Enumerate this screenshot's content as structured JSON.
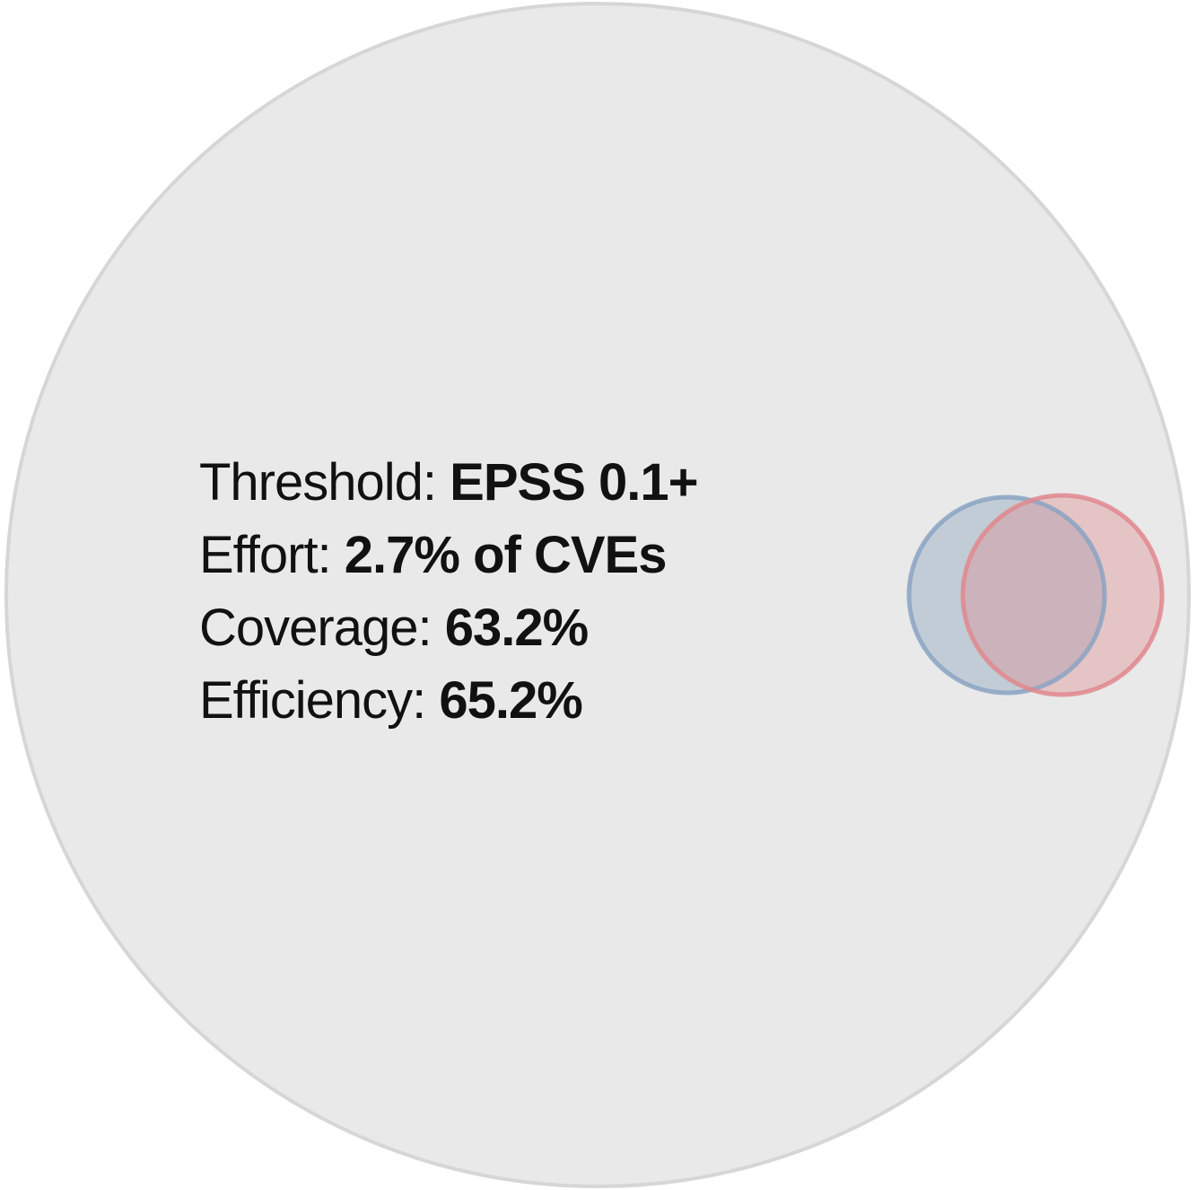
{
  "colors": {
    "population_fill": "#e9e9e9",
    "population_stroke": "#d6d6d6",
    "set_a_fill": "#7b98b8",
    "set_a_stroke": "#8aa3c2",
    "set_b_fill": "#e08088",
    "set_b_stroke": "#e0878d"
  },
  "stats": [
    {
      "label": "Threshold:",
      "value": "EPSS 0.1+"
    },
    {
      "label": "Effort:",
      "value": "2.7% of CVEs"
    },
    {
      "label": "Coverage:",
      "value": "63.2%"
    },
    {
      "label": "Efficiency:",
      "value": "65.2%"
    }
  ]
}
